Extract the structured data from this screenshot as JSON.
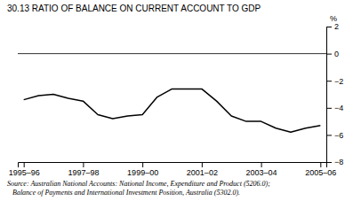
{
  "chart_data": {
    "type": "line",
    "title": "30.13   RATIO OF BALANCE ON CURRENT ACCOUNT TO GDP",
    "y_label": "%",
    "x": [
      0,
      0.5,
      1,
      1.5,
      2,
      2.5,
      3,
      3.5,
      4,
      4.5,
      5,
      5.5,
      6,
      6.5,
      7,
      7.5,
      8,
      8.5,
      9,
      9.5,
      10
    ],
    "values": [
      -3.4,
      -3.1,
      -3.0,
      -3.3,
      -3.5,
      -4.5,
      -4.8,
      -4.6,
      -4.5,
      -3.2,
      -2.6,
      -2.6,
      -2.6,
      -3.5,
      -4.6,
      -5.0,
      -5.0,
      -5.5,
      -5.8,
      -5.5,
      -5.3
    ],
    "color": "#000000",
    "hlines": [
      0
    ],
    "xlim": [
      -0.2,
      10.2
    ],
    "xticks": [
      {
        "value": 0,
        "label": "1995–96"
      },
      {
        "value": 2,
        "label": "1997–98"
      },
      {
        "value": 4,
        "label": "1999–00"
      },
      {
        "value": 6,
        "label": "2001–02"
      },
      {
        "value": 8,
        "label": "2003–04"
      },
      {
        "value": 10,
        "label": "2005–06"
      }
    ],
    "ylim": [
      -8,
      2
    ],
    "yticks": [
      2,
      0,
      {
        "value": -2,
        "label": "−2"
      },
      {
        "value": -4,
        "label": "−4"
      },
      {
        "value": -6,
        "label": "−6"
      },
      {
        "value": -8,
        "label": "−8"
      }
    ],
    "grid": false,
    "source": [
      "Source: Australian National Accounts: National Income, Expenditure and Product (5206.0);",
      "   Balance of Payments and International Investment Position, Australia (5302.0)."
    ]
  }
}
